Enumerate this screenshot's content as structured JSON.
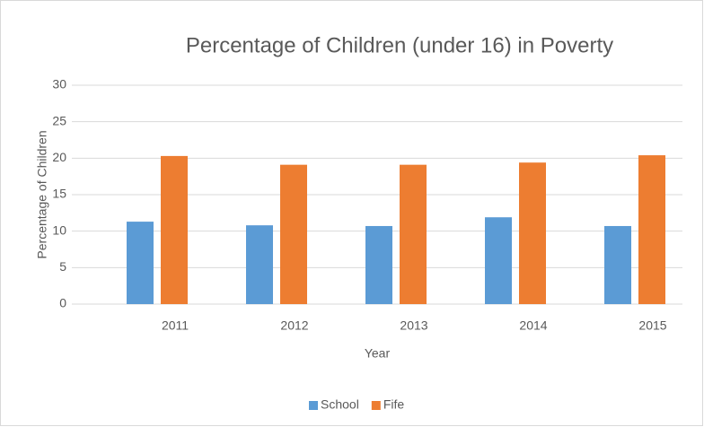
{
  "chart_data": {
    "type": "bar",
    "title": "Percentage of Children (under 16) in Poverty",
    "x_label": "Year",
    "y_label": "Percentage of Children",
    "categories": [
      "2011",
      "2012",
      "2013",
      "2014",
      "2015"
    ],
    "series": [
      {
        "name": "School",
        "color": "#5b9bd5",
        "values": [
          11.3,
          10.8,
          10.7,
          11.9,
          10.7
        ]
      },
      {
        "name": "Fife",
        "color": "#ed7d31",
        "values": [
          20.3,
          19.1,
          19.1,
          19.4,
          20.4
        ]
      }
    ],
    "ylim": [
      0,
      30
    ],
    "yticks": [
      0,
      5,
      10,
      15,
      20,
      25,
      30
    ],
    "grid": true,
    "legend": "bottom"
  }
}
